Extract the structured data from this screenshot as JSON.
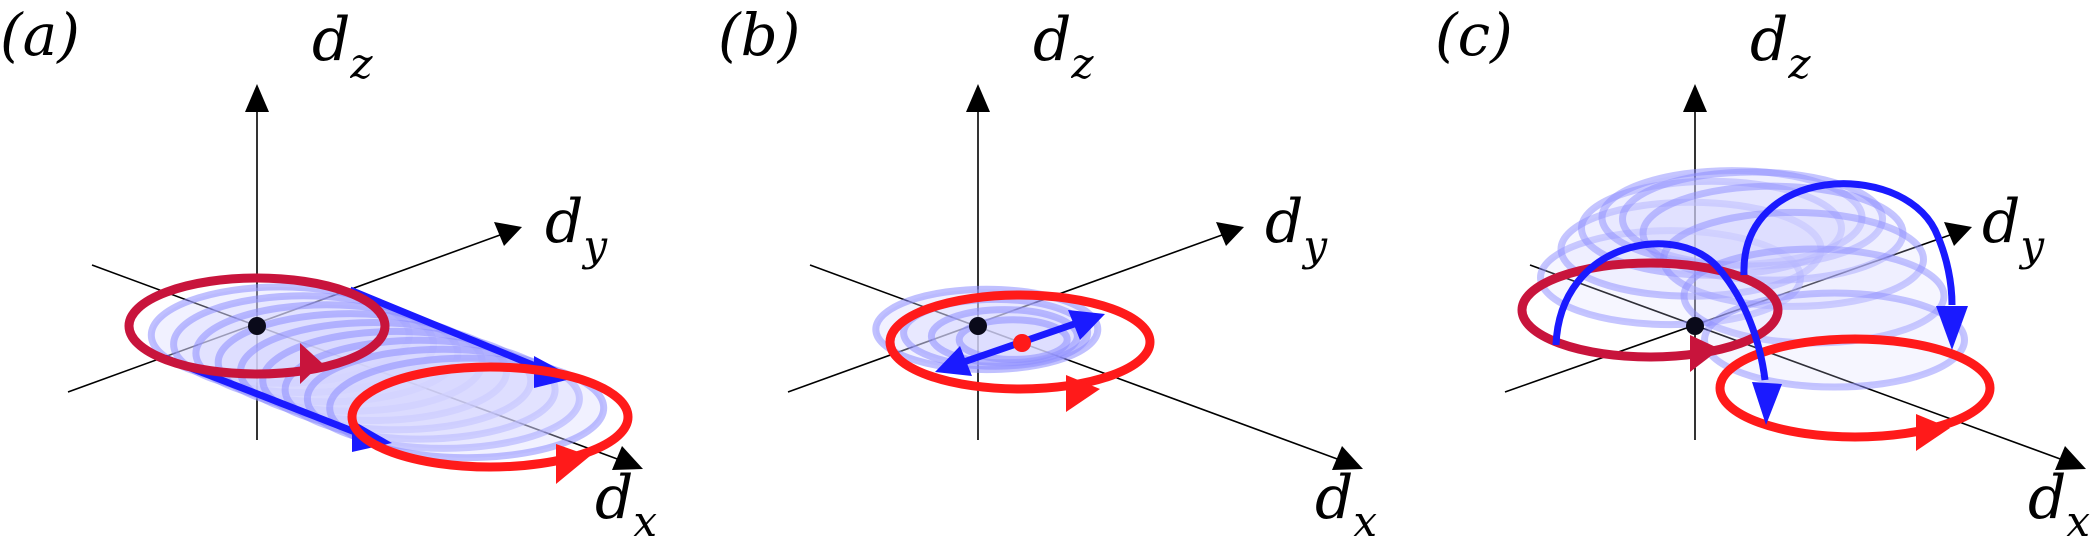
{
  "colors": {
    "red": "#ff1a1a",
    "dark_red": "#c8143c",
    "blue": "#1a1aff",
    "light_blue": "#8c8cff",
    "axis": "#000000",
    "origin_dot": "#0a0a1a"
  },
  "panels": [
    {
      "id": "a",
      "label": "(a)",
      "axes": {
        "z_main": "d",
        "z_sub": "z",
        "y_main": "d",
        "y_sub": "y",
        "x_main": "d",
        "x_sub": "x"
      }
    },
    {
      "id": "b",
      "label": "(b)",
      "axes": {
        "z_main": "d",
        "z_sub": "z",
        "y_main": "d",
        "y_sub": "y",
        "x_main": "d",
        "x_sub": "x"
      }
    },
    {
      "id": "c",
      "label": "(c)",
      "axes": {
        "z_main": "d",
        "z_sub": "z",
        "y_main": "d",
        "y_sub": "y",
        "x_main": "d",
        "x_sub": "x"
      }
    }
  ]
}
